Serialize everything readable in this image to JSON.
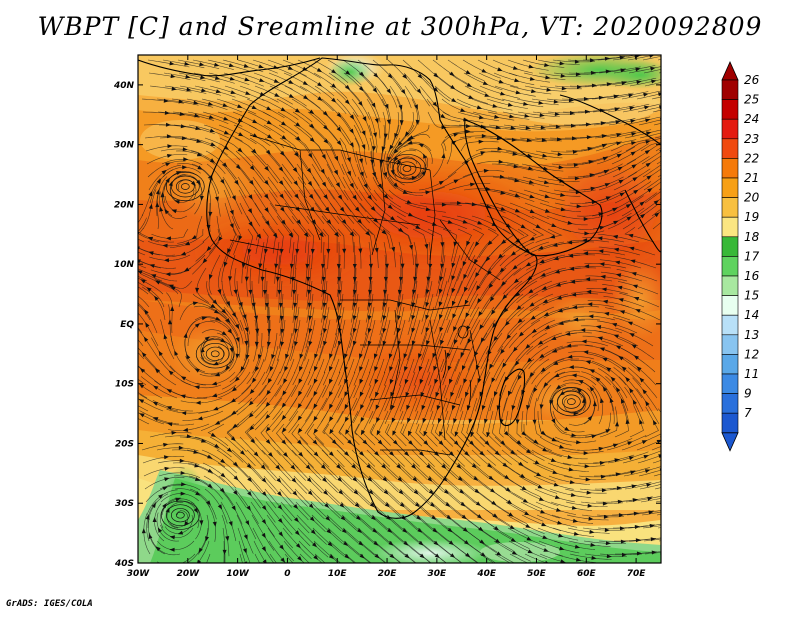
{
  "title": "WBPT [C] and Sreamline at 300hPa, VT: 2020092809",
  "credit": "GrADS: IGES/COLA",
  "map": {
    "lon_range": [
      -30,
      75
    ],
    "lat_range": [
      -40,
      45
    ],
    "lon_ticks": [
      {
        "value": -30,
        "label": "30W"
      },
      {
        "value": -20,
        "label": "20W"
      },
      {
        "value": -10,
        "label": "10W"
      },
      {
        "value": 0,
        "label": "0"
      },
      {
        "value": 10,
        "label": "10E"
      },
      {
        "value": 20,
        "label": "20E"
      },
      {
        "value": 30,
        "label": "30E"
      },
      {
        "value": 40,
        "label": "40E"
      },
      {
        "value": 50,
        "label": "50E"
      },
      {
        "value": 60,
        "label": "60E"
      },
      {
        "value": 70,
        "label": "70E"
      }
    ],
    "lat_ticks": [
      {
        "value": 40,
        "label": "40N"
      },
      {
        "value": 30,
        "label": "30N"
      },
      {
        "value": 20,
        "label": "20N"
      },
      {
        "value": 10,
        "label": "10N"
      },
      {
        "value": 0,
        "label": "EQ"
      },
      {
        "value": -10,
        "label": "10S"
      },
      {
        "value": -20,
        "label": "20S"
      },
      {
        "value": -30,
        "label": "30S"
      },
      {
        "value": -40,
        "label": "40S"
      }
    ],
    "vortices": [
      {
        "lon": -20.5,
        "lat": 23,
        "label": "cyclonic-circulation-west-atlantic"
      },
      {
        "lon": -14.5,
        "lat": -5,
        "label": "cyclonic-circulation-gulf-of-guinea"
      },
      {
        "lon": -21.5,
        "lat": -32,
        "label": "cyclonic-circulation-south-atlantic"
      },
      {
        "lon": 57,
        "lat": -13,
        "label": "anticyclonic-circulation-indian-ocean"
      },
      {
        "lon": 24,
        "lat": 26,
        "label": "anticyclonic-circulation-sahara"
      }
    ]
  },
  "colorbar": {
    "levels": [
      {
        "label": "26",
        "color": "#a00000"
      },
      {
        "label": "25",
        "color": "#c40000"
      },
      {
        "label": "24",
        "color": "#e41a10"
      },
      {
        "label": "23",
        "color": "#f04a10"
      },
      {
        "label": "22",
        "color": "#f57a0a"
      },
      {
        "label": "21",
        "color": "#f7a016"
      },
      {
        "label": "20",
        "color": "#f8c040"
      },
      {
        "label": "19",
        "color": "#fbe682"
      },
      {
        "label": "18",
        "color": "#38b838"
      },
      {
        "label": "17",
        "color": "#5fd35f"
      },
      {
        "label": "16",
        "color": "#a8e8a0"
      },
      {
        "label": "15",
        "color": "#e8fff0"
      },
      {
        "label": "14",
        "color": "#b8e0f8"
      },
      {
        "label": "13",
        "color": "#88c4f0"
      },
      {
        "label": "12",
        "color": "#5aa8e8"
      },
      {
        "label": "11",
        "color": "#3c8ae4"
      },
      {
        "label": "9",
        "color": "#2a70dc"
      },
      {
        "label": "7",
        "color": "#1c58d0"
      }
    ]
  }
}
